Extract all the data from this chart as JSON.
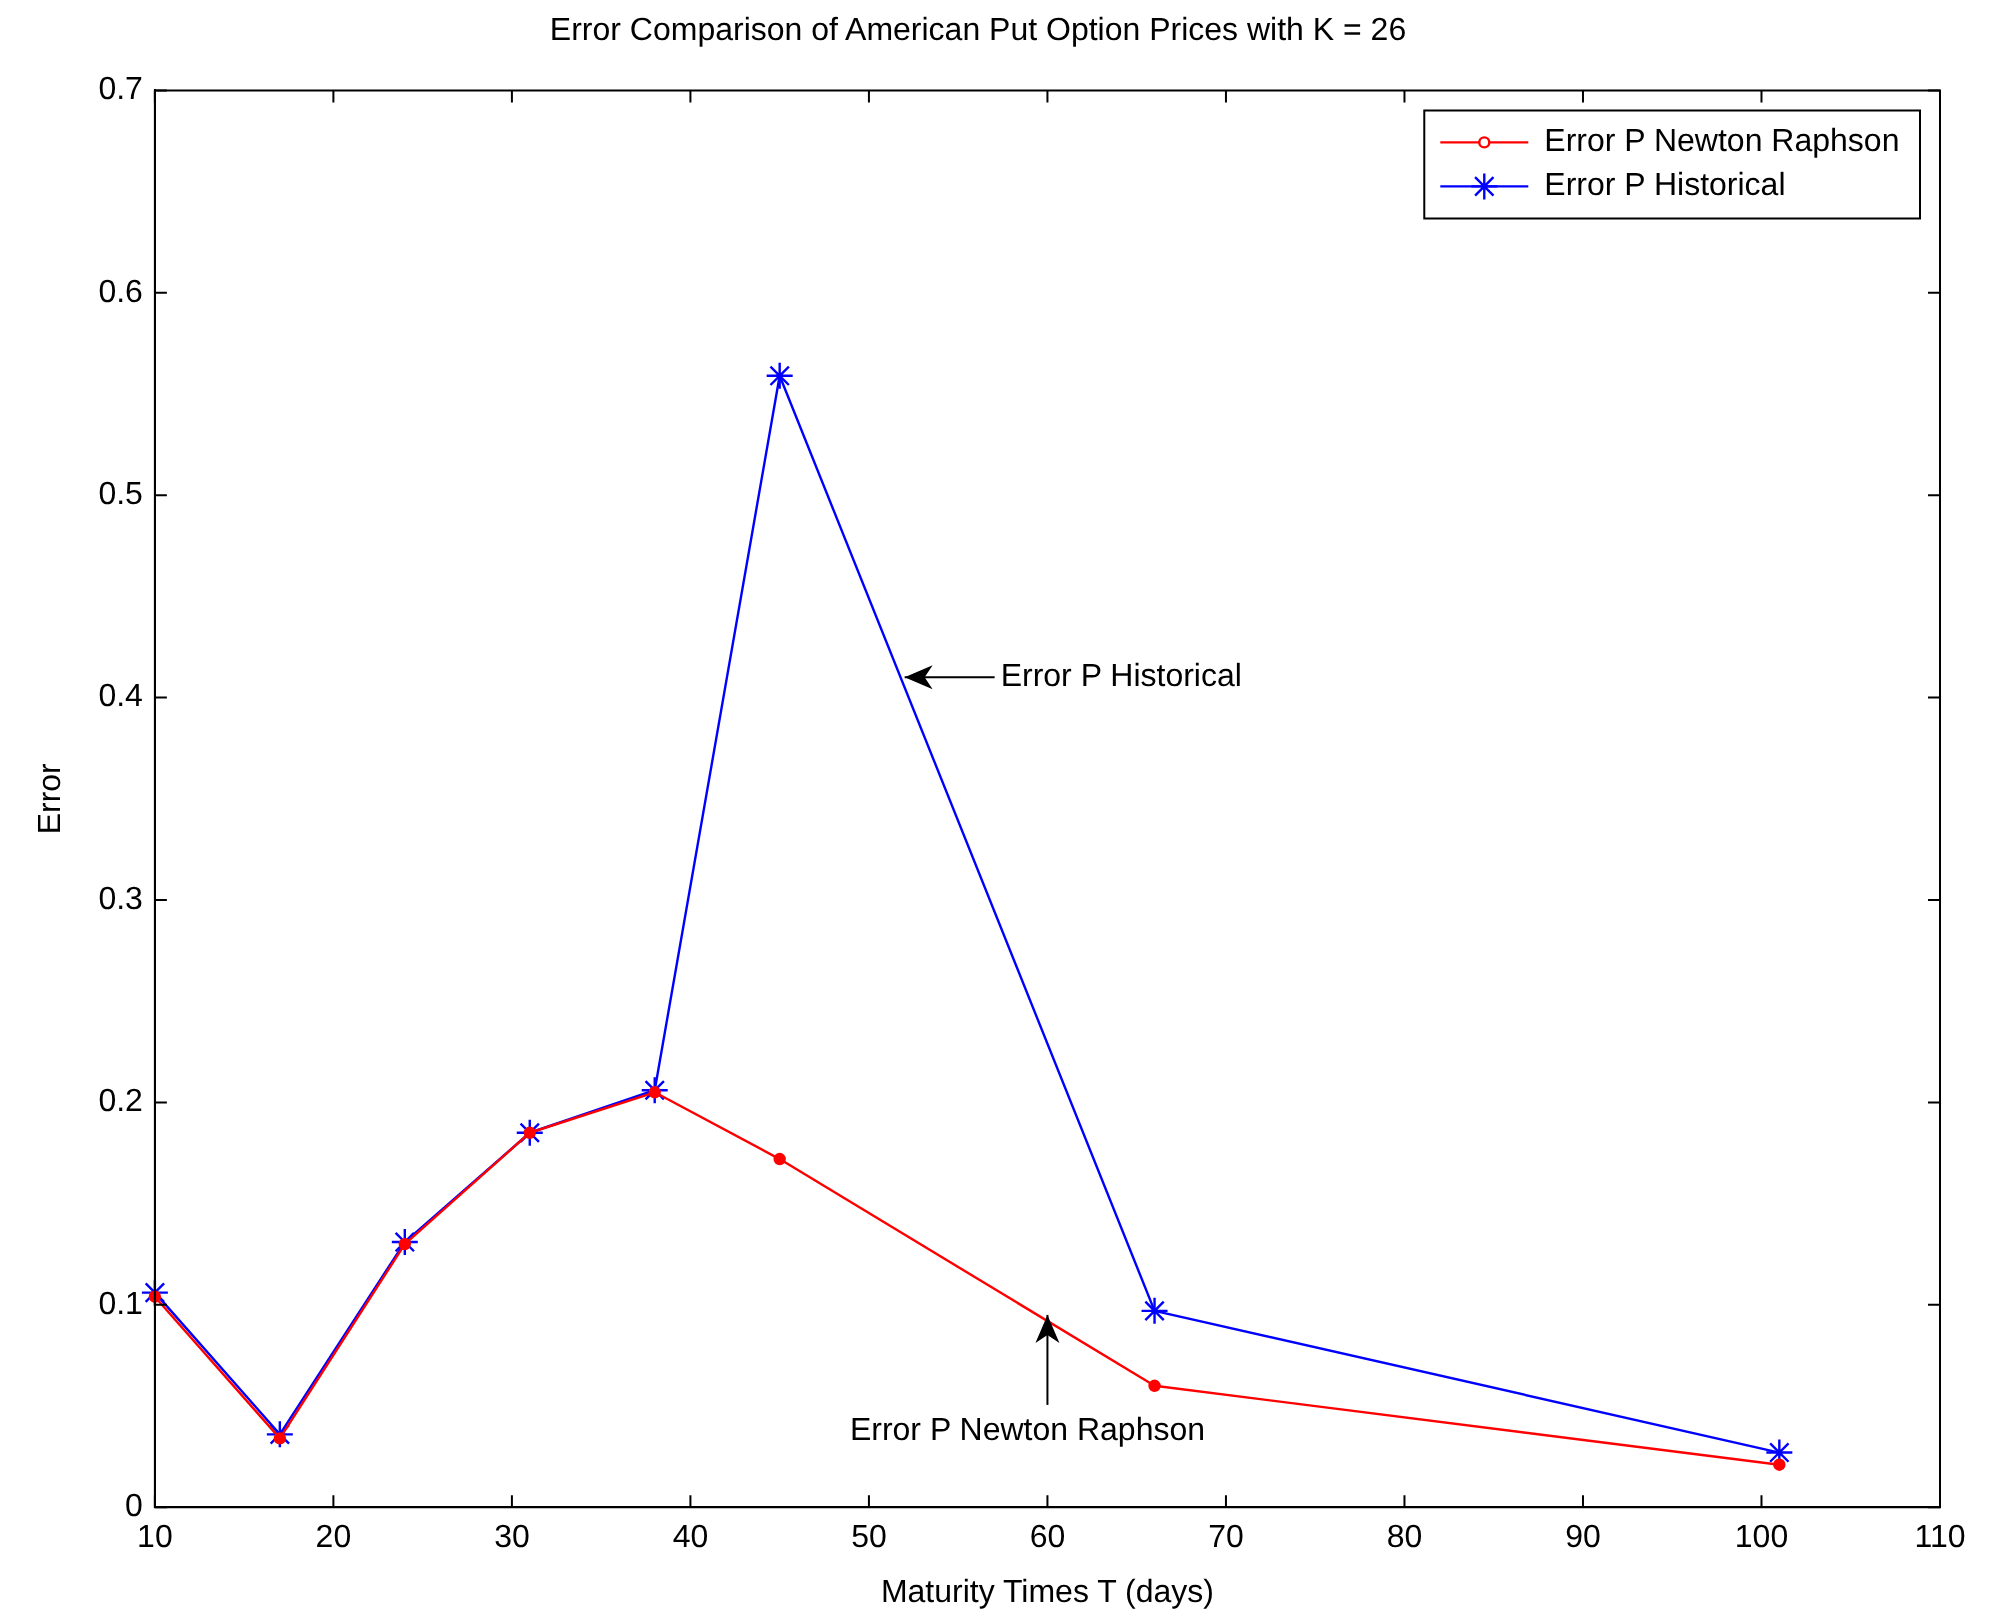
{
  "chart_data": {
    "type": "line",
    "title": "Error Comparison of American Put Option Prices with K = 26",
    "xlabel": "Maturity Times T (days)",
    "ylabel": "Error",
    "x": [
      10,
      17,
      24,
      31,
      38,
      45,
      66,
      101
    ],
    "series": [
      {
        "name": "Error P Newton Raphson",
        "color": "#ff0000",
        "marker": "circle",
        "values": [
          0.104,
          0.034,
          0.13,
          0.185,
          0.205,
          0.172,
          0.06,
          0.021
        ]
      },
      {
        "name": "Error P Historical",
        "color": "#0000ff",
        "marker": "cross",
        "values": [
          0.106,
          0.036,
          0.131,
          0.185,
          0.206,
          0.559,
          0.097,
          0.027
        ]
      }
    ],
    "xlim": [
      10,
      110
    ],
    "xticks": [
      10,
      20,
      30,
      40,
      50,
      60,
      70,
      80,
      90,
      100,
      110
    ],
    "ylim": [
      0,
      0.7
    ],
    "yticks": [
      0,
      0.1,
      0.2,
      0.3,
      0.4,
      0.5,
      0.6,
      0.7
    ],
    "grid": false,
    "legend": "top right",
    "line_style": "solid",
    "annotations": [
      {
        "text": "Error P Historical",
        "x": 52,
        "y": 0.41
      },
      {
        "text": "Error P Newton Raphson",
        "x": 60,
        "y": 0.095
      }
    ]
  }
}
